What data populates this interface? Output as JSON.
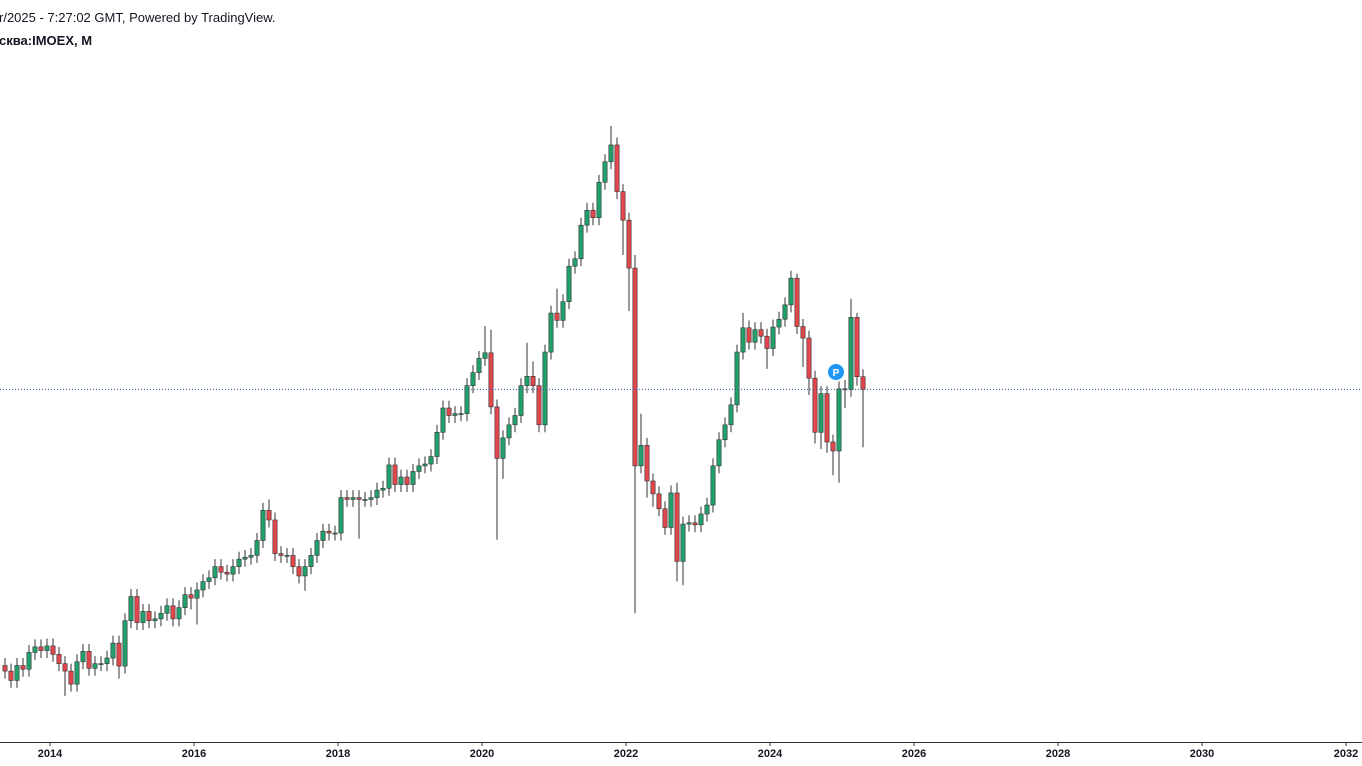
{
  "chart_data": {
    "type": "candlestick",
    "header": "r/2025 - 7:27:02 GMT, Powered by TradingView.",
    "title": "сква:IMOEX, M",
    "marker_label": "P",
    "up_color": "#22a06b",
    "down_color": "#e0474c",
    "wick_color": "#333333",
    "last_price_line_color": "#2a5ca8",
    "x": [
      "2013-05",
      "2013-06",
      "2013-07",
      "2013-08",
      "2013-09",
      "2013-10",
      "2013-11",
      "2013-12",
      "2014-01",
      "2014-02",
      "2014-03",
      "2014-04",
      "2014-05",
      "2014-06",
      "2014-07",
      "2014-08",
      "2014-09",
      "2014-10",
      "2014-11",
      "2014-12",
      "2015-01",
      "2015-02",
      "2015-03",
      "2015-04",
      "2015-05",
      "2015-06",
      "2015-07",
      "2015-08",
      "2015-09",
      "2015-10",
      "2015-11",
      "2015-12",
      "2016-01",
      "2016-02",
      "2016-03",
      "2016-04",
      "2016-05",
      "2016-06",
      "2016-07",
      "2016-08",
      "2016-09",
      "2016-10",
      "2016-11",
      "2016-12",
      "2017-01",
      "2017-02",
      "2017-03",
      "2017-04",
      "2017-05",
      "2017-06",
      "2017-07",
      "2017-08",
      "2017-09",
      "2017-10",
      "2017-11",
      "2017-12",
      "2018-01",
      "2018-02",
      "2018-03",
      "2018-04",
      "2018-05",
      "2018-06",
      "2018-07",
      "2018-08",
      "2018-09",
      "2018-10",
      "2018-11",
      "2018-12",
      "2019-01",
      "2019-02",
      "2019-03",
      "2019-04",
      "2019-05",
      "2019-06",
      "2019-07",
      "2019-08",
      "2019-09",
      "2019-10",
      "2019-11",
      "2019-12",
      "2020-01",
      "2020-02",
      "2020-03",
      "2020-04",
      "2020-05",
      "2020-06",
      "2020-07",
      "2020-08",
      "2020-09",
      "2020-10",
      "2020-11",
      "2020-12",
      "2021-01",
      "2021-02",
      "2021-03",
      "2021-04",
      "2021-05",
      "2021-06",
      "2021-07",
      "2021-08",
      "2021-09",
      "2021-10",
      "2021-11",
      "2021-12",
      "2022-01",
      "2022-02",
      "2022-03",
      "2022-04",
      "2022-05",
      "2022-06",
      "2022-07",
      "2022-08",
      "2022-09",
      "2022-10",
      "2022-11",
      "2022-12",
      "2023-01",
      "2023-02",
      "2023-03",
      "2023-04",
      "2023-05",
      "2023-06",
      "2023-07",
      "2023-08",
      "2023-09",
      "2023-10",
      "2023-11",
      "2023-12",
      "2024-01",
      "2024-02",
      "2024-03",
      "2024-04",
      "2024-05",
      "2024-06",
      "2024-07",
      "2024-08",
      "2024-09",
      "2024-10",
      "2024-11",
      "2024-12",
      "2025-01",
      "2025-02",
      "2025-03",
      "2025-04"
    ],
    "open": [
      1400,
      1370,
      1320,
      1400,
      1380,
      1470,
      1500,
      1480,
      1505,
      1460,
      1410,
      1370,
      1300,
      1420,
      1476,
      1385,
      1410,
      1410,
      1440,
      1520,
      1397,
      1640,
      1770,
      1630,
      1690,
      1640,
      1650,
      1680,
      1720,
      1650,
      1710,
      1780,
      1761,
      1805,
      1850,
      1870,
      1930,
      1900,
      1890,
      1930,
      1970,
      1980,
      1990,
      2070,
      2232,
      2180,
      2000,
      1990,
      1990,
      1930,
      1880,
      1930,
      1990,
      2070,
      2120,
      2110,
      2110,
      2300,
      2290,
      2300,
      2290,
      2290,
      2300,
      2340,
      2350,
      2475,
      2370,
      2410,
      2370,
      2440,
      2470,
      2480,
      2520,
      2650,
      2780,
      2740,
      2750,
      2750,
      2900,
      2970,
      3046,
      3076,
      2786,
      2510,
      2620,
      2690,
      2740,
      2900,
      2950,
      2900,
      2690,
      3080,
      3289,
      3250,
      3350,
      3540,
      3580,
      3760,
      3840,
      3800,
      3990,
      4100,
      4190,
      3940,
      3787,
      3530,
      2470,
      2580,
      2389,
      2320,
      2240,
      2140,
      2325,
      1958,
      2158,
      2165,
      2154,
      2212,
      2260,
      2470,
      2610,
      2690,
      2797,
      3080,
      3210,
      3133,
      3200,
      3165,
      3099,
      3214,
      3256,
      3333,
      3476,
      3217,
      3155,
      2940,
      2650,
      2857,
      2598,
      2550,
      2883,
      2880,
      3266,
      2948
    ],
    "high": [
      1440,
      1410,
      1440,
      1440,
      1510,
      1540,
      1540,
      1545,
      1545,
      1500,
      1450,
      1410,
      1460,
      1516,
      1516,
      1450,
      1450,
      1480,
      1560,
      1560,
      1680,
      1810,
      1810,
      1730,
      1730,
      1690,
      1720,
      1760,
      1760,
      1750,
      1820,
      1820,
      1845,
      1890,
      1910,
      1970,
      1970,
      1940,
      1970,
      2010,
      2020,
      2030,
      2110,
      2272,
      2290,
      2220,
      2040,
      2030,
      2030,
      1970,
      1970,
      2030,
      2110,
      2160,
      2160,
      2150,
      2340,
      2340,
      2340,
      2340,
      2330,
      2340,
      2380,
      2390,
      2515,
      2515,
      2450,
      2450,
      2480,
      2510,
      2520,
      2560,
      2690,
      2820,
      2820,
      2790,
      2790,
      2940,
      3010,
      3086,
      3220,
      3200,
      2826,
      2660,
      2730,
      2780,
      2940,
      3130,
      3030,
      2940,
      3120,
      3329,
      3420,
      3390,
      3580,
      3620,
      3800,
      3880,
      3880,
      4030,
      4140,
      4292,
      4230,
      3980,
      3827,
      3600,
      2750,
      2620,
      2430,
      2360,
      2280,
      2365,
      2380,
      2198,
      2205,
      2205,
      2252,
      2300,
      2510,
      2650,
      2730,
      2837,
      3120,
      3290,
      3250,
      3240,
      3240,
      3205,
      3254,
      3296,
      3373,
      3516,
      3501,
      3257,
      3195,
      2980,
      2897,
      2897,
      2638,
      2923,
      2930,
      3366,
      3290,
      2988
    ],
    "low": [
      1330,
      1280,
      1280,
      1340,
      1340,
      1430,
      1440,
      1440,
      1420,
      1370,
      1237,
      1260,
      1260,
      1380,
      1345,
      1345,
      1370,
      1370,
      1400,
      1330,
      1357,
      1600,
      1590,
      1590,
      1600,
      1600,
      1610,
      1640,
      1610,
      1610,
      1670,
      1700,
      1620,
      1765,
      1810,
      1830,
      1860,
      1850,
      1850,
      1890,
      1930,
      1940,
      1950,
      2030,
      2140,
      1960,
      1950,
      1950,
      1890,
      1840,
      1800,
      1890,
      1950,
      2030,
      2070,
      2070,
      2070,
      2250,
      2250,
      2080,
      2250,
      2250,
      2260,
      2300,
      2310,
      2330,
      2330,
      2330,
      2330,
      2400,
      2430,
      2440,
      2480,
      2610,
      2700,
      2700,
      2710,
      2710,
      2860,
      2930,
      3006,
      2746,
      2074,
      2400,
      2580,
      2650,
      2700,
      2860,
      2860,
      2650,
      2650,
      3040,
      3210,
      3210,
      3310,
      3500,
      3540,
      3720,
      3760,
      3760,
      3950,
      4060,
      3900,
      3600,
      3300,
      1681,
      2430,
      2300,
      2250,
      2200,
      2100,
      2100,
      1850,
      1830,
      2118,
      2114,
      2114,
      2172,
      2220,
      2430,
      2570,
      2650,
      2757,
      3040,
      3093,
      3093,
      3125,
      2990,
      3059,
      3174,
      3216,
      3293,
      3177,
      3000,
      2850,
      2590,
      2560,
      2540,
      2420,
      2380,
      2780,
      2840,
      2900,
      2570
    ],
    "close": [
      1370,
      1320,
      1400,
      1380,
      1470,
      1500,
      1480,
      1505,
      1460,
      1410,
      1370,
      1300,
      1420,
      1476,
      1385,
      1410,
      1410,
      1440,
      1520,
      1397,
      1640,
      1770,
      1630,
      1690,
      1640,
      1650,
      1680,
      1720,
      1650,
      1710,
      1780,
      1761,
      1805,
      1850,
      1870,
      1930,
      1900,
      1890,
      1930,
      1970,
      1980,
      1990,
      2070,
      2232,
      2180,
      2000,
      1990,
      1990,
      1930,
      1880,
      1930,
      1990,
      2070,
      2120,
      2110,
      2110,
      2300,
      2290,
      2300,
      2290,
      2290,
      2300,
      2340,
      2350,
      2475,
      2370,
      2410,
      2370,
      2440,
      2470,
      2480,
      2520,
      2650,
      2780,
      2740,
      2750,
      2750,
      2900,
      2970,
      3046,
      3076,
      2786,
      2510,
      2620,
      2690,
      2740,
      2900,
      2950,
      2900,
      2690,
      3080,
      3289,
      3250,
      3350,
      3540,
      3580,
      3760,
      3840,
      3800,
      3990,
      4100,
      4190,
      3940,
      3787,
      3530,
      2470,
      2580,
      2389,
      2320,
      2240,
      2140,
      2325,
      1958,
      2158,
      2165,
      2154,
      2212,
      2260,
      2470,
      2610,
      2690,
      2797,
      3080,
      3210,
      3133,
      3200,
      3165,
      3099,
      3214,
      3256,
      3333,
      3476,
      3217,
      3155,
      2940,
      2650,
      2857,
      2598,
      2550,
      2883,
      2880,
      3266,
      2948,
      2880
    ],
    "xlim": [
      "2013-05",
      "2032-03"
    ],
    "xticks": [
      {
        "value": "2014-01",
        "label": "2014"
      },
      {
        "value": "2016-01",
        "label": "2016"
      },
      {
        "value": "2018-01",
        "label": "2018"
      },
      {
        "value": "2020-01",
        "label": "2020"
      },
      {
        "value": "2022-01",
        "label": "2022"
      },
      {
        "value": "2024-01",
        "label": "2024"
      },
      {
        "value": "2026-01",
        "label": "2026"
      },
      {
        "value": "2028-01",
        "label": "2028"
      },
      {
        "value": "2030-01",
        "label": "2030"
      },
      {
        "value": "2032-01",
        "label": "2032"
      }
    ],
    "ylim": [
      990,
      4967
    ]
  }
}
